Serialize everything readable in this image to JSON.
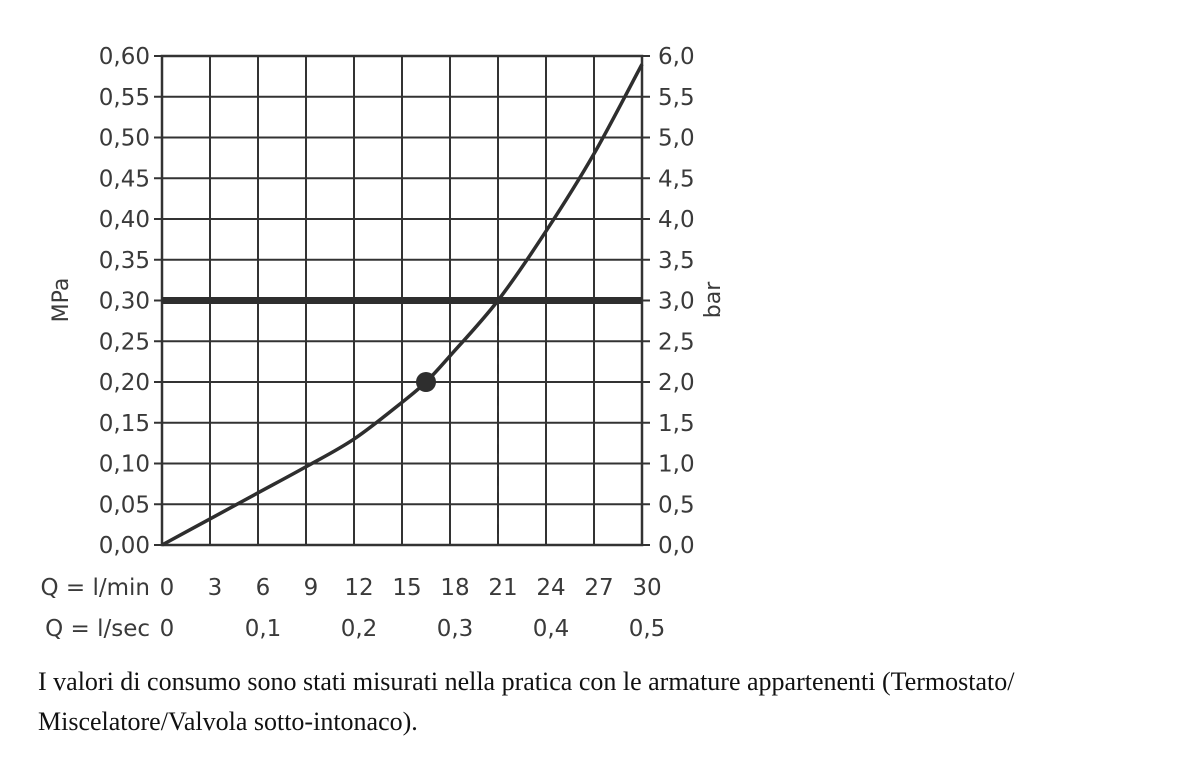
{
  "chart_data": {
    "type": "line",
    "ylabel_left": "MPa",
    "ylabel_right": "bar",
    "ylim": [
      0,
      0.6
    ],
    "xlim": [
      0,
      30
    ],
    "y_ticks_left": [
      "0,00",
      "0,05",
      "0,10",
      "0,15",
      "0,20",
      "0,25",
      "0,30",
      "0,35",
      "0,40",
      "0,45",
      "0,50",
      "0,55",
      "0,60"
    ],
    "y_ticks_right": [
      "0,0",
      "0,5",
      "1,0",
      "1,5",
      "2,0",
      "2,5",
      "3,0",
      "3,5",
      "4,0",
      "4,5",
      "5,0",
      "5,5",
      "6,0"
    ],
    "x_axis_lmin": {
      "label": "Q = l/min",
      "ticks": [
        "0",
        "3",
        "6",
        "9",
        "12",
        "15",
        "18",
        "21",
        "24",
        "27",
        "30"
      ]
    },
    "x_axis_lsec": {
      "label": "Q = l/sec",
      "ticks": [
        "0",
        "0,1",
        "0,2",
        "0,3",
        "0,4",
        "0,5"
      ]
    },
    "grid": true,
    "series": [
      {
        "x": [
          0,
          3,
          6,
          9,
          12,
          15,
          16.5,
          18,
          21,
          24,
          27,
          30
        ],
        "y": [
          0,
          0.032,
          0.064,
          0.096,
          0.13,
          0.175,
          0.2,
          0.232,
          0.3,
          0.385,
          0.48,
          0.59
        ]
      }
    ],
    "marker_point": {
      "x": 16.5,
      "y": 0.2
    },
    "reference_line_y": 0.3,
    "reference_drop_x": 21
  },
  "caption": "I valori di consumo sono stati misurati nella pratica con le armature appartenenti (Termostato/ Miscelatore/Valvola sotto-intonaco)."
}
